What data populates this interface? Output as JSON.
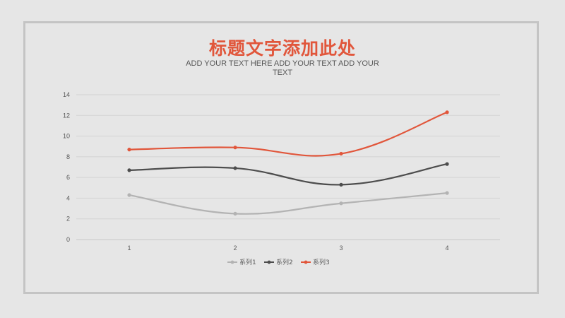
{
  "title": "标题文字添加此处",
  "subtitle": "ADD YOUR TEXT HERE ADD YOUR TEXT ADD YOUR TEXT",
  "chart_data": {
    "type": "line",
    "smooth": true,
    "categories": [
      "1",
      "2",
      "3",
      "4"
    ],
    "series": [
      {
        "name": "系列1",
        "values": [
          4.3,
          2.5,
          3.5,
          4.5
        ],
        "color": "#b3b3b3"
      },
      {
        "name": "系列2",
        "values": [
          6.7,
          6.9,
          5.3,
          7.3
        ],
        "color": "#4d4d4d"
      },
      {
        "name": "系列3",
        "values": [
          8.7,
          8.9,
          8.3,
          12.3
        ],
        "color": "#e1563b"
      }
    ],
    "y_ticks": [
      "0",
      "2",
      "4",
      "6",
      "8",
      "10",
      "12",
      "14"
    ],
    "ylim": [
      0,
      14
    ],
    "grid": true,
    "legend": "bottom"
  }
}
